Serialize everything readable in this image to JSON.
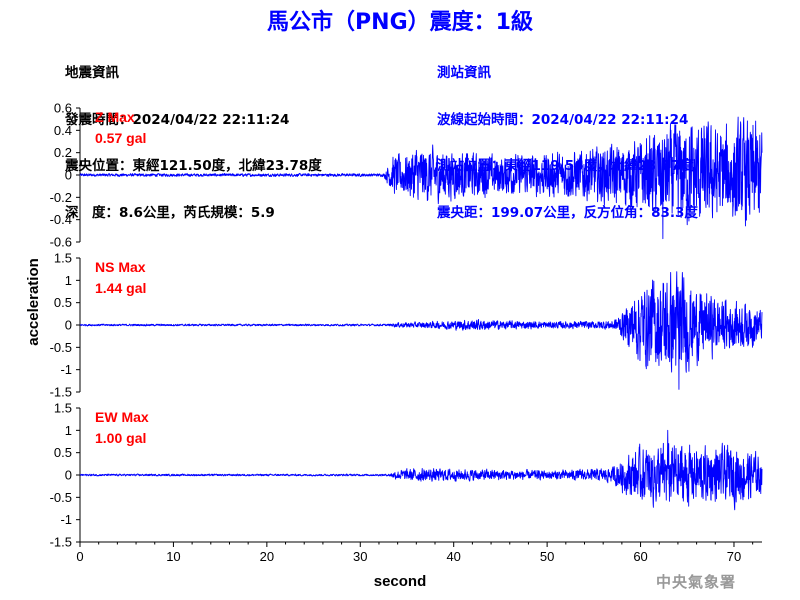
{
  "title": "馬公市（PNG）震度：1級",
  "info_left": {
    "heading": "地震資訊",
    "origin_time": "發震時間：2024/04/22 22:11:24",
    "epicenter": "震央位置：東經121.50度，北緯23.78度",
    "depth_magnitude": "深　度：8.6公里，芮氏規模：5.9"
  },
  "info_right": {
    "heading": "測站資訊",
    "waveform_start": "波線起始時間：2024/04/22 22:11:24",
    "station_location": "測站位置：東經119.56度，北緯23.57度",
    "distance_azimuth": "震央距：199.07公里，反方位角：83.3度"
  },
  "agency": "中央氣象署",
  "colors": {
    "trace": "#0000ff",
    "max_label": "#ff0000",
    "title": "#0000ff",
    "agency": "#999999"
  },
  "chart_data": {
    "type": "line",
    "xlabel": "second",
    "ylabel": "acceleration",
    "xlim": [
      0,
      73
    ],
    "xticks": [
      0,
      10,
      20,
      30,
      40,
      50,
      60,
      70
    ],
    "grid": false,
    "panels": [
      {
        "name": "Z",
        "max_label": "Z Max",
        "max_value": "0.57 gal",
        "ylim": [
          -0.6,
          0.6
        ],
        "yticks": [
          0.6,
          0.4,
          0.2,
          0,
          -0.2,
          -0.4,
          -0.6
        ],
        "ytick_labels": [
          "0.6",
          "0.4",
          "0.2",
          "0",
          "-0.2",
          "-0.4",
          "-0.6"
        ],
        "envelope": [
          [
            0,
            0.012
          ],
          [
            32.5,
            0.012
          ],
          [
            33.5,
            0.16
          ],
          [
            35,
            0.18
          ],
          [
            36,
            0.24
          ],
          [
            38,
            0.22
          ],
          [
            40,
            0.2
          ],
          [
            45,
            0.16
          ],
          [
            50,
            0.18
          ],
          [
            55,
            0.22
          ],
          [
            58,
            0.26
          ],
          [
            60,
            0.3
          ],
          [
            62,
            0.36
          ],
          [
            64,
            0.42
          ],
          [
            66,
            0.44
          ],
          [
            68,
            0.4
          ],
          [
            70,
            0.42
          ],
          [
            72,
            0.46
          ],
          [
            73,
            0.4
          ]
        ],
        "peak": [
          62.4,
          -0.57
        ]
      },
      {
        "name": "NS",
        "max_label": "NS Max",
        "max_value": "1.44 gal",
        "ylim": [
          -1.5,
          1.5
        ],
        "yticks": [
          1.5,
          1,
          0.5,
          0,
          -0.5,
          -1,
          -1.5
        ],
        "ytick_labels": [
          "1.5",
          "1",
          "0.5",
          "0",
          "-0.5",
          "-1",
          "-1.5"
        ],
        "envelope": [
          [
            0,
            0.02
          ],
          [
            33,
            0.02
          ],
          [
            34,
            0.05
          ],
          [
            38,
            0.07
          ],
          [
            42,
            0.12
          ],
          [
            45,
            0.09
          ],
          [
            50,
            0.07
          ],
          [
            55,
            0.08
          ],
          [
            57,
            0.1
          ],
          [
            58,
            0.25
          ],
          [
            59,
            0.55
          ],
          [
            60,
            0.8
          ],
          [
            62,
            1.0
          ],
          [
            64,
            1.1
          ],
          [
            66,
            0.75
          ],
          [
            68,
            0.6
          ],
          [
            70,
            0.5
          ],
          [
            72,
            0.45
          ],
          [
            73,
            0.3
          ]
        ],
        "peak": [
          64.1,
          -1.44
        ]
      },
      {
        "name": "EW",
        "max_label": "EW Max",
        "max_value": "1.00 gal",
        "ylim": [
          -1.5,
          1.5
        ],
        "yticks": [
          1.5,
          1,
          0.5,
          0,
          -0.5,
          -1,
          -1.5
        ],
        "ytick_labels": [
          "1.5",
          "1",
          "0.5",
          "0",
          "-0.5",
          "-1",
          "-1.5"
        ],
        "envelope": [
          [
            0,
            0.02
          ],
          [
            33,
            0.02
          ],
          [
            34,
            0.1
          ],
          [
            36,
            0.14
          ],
          [
            40,
            0.12
          ],
          [
            45,
            0.11
          ],
          [
            50,
            0.09
          ],
          [
            55,
            0.12
          ],
          [
            57,
            0.16
          ],
          [
            58,
            0.35
          ],
          [
            60,
            0.55
          ],
          [
            62,
            0.65
          ],
          [
            64,
            0.7
          ],
          [
            66,
            0.6
          ],
          [
            68,
            0.55
          ],
          [
            70,
            0.6
          ],
          [
            72,
            0.5
          ],
          [
            73,
            0.35
          ]
        ],
        "peak": [
          62.9,
          1.0
        ]
      }
    ]
  }
}
